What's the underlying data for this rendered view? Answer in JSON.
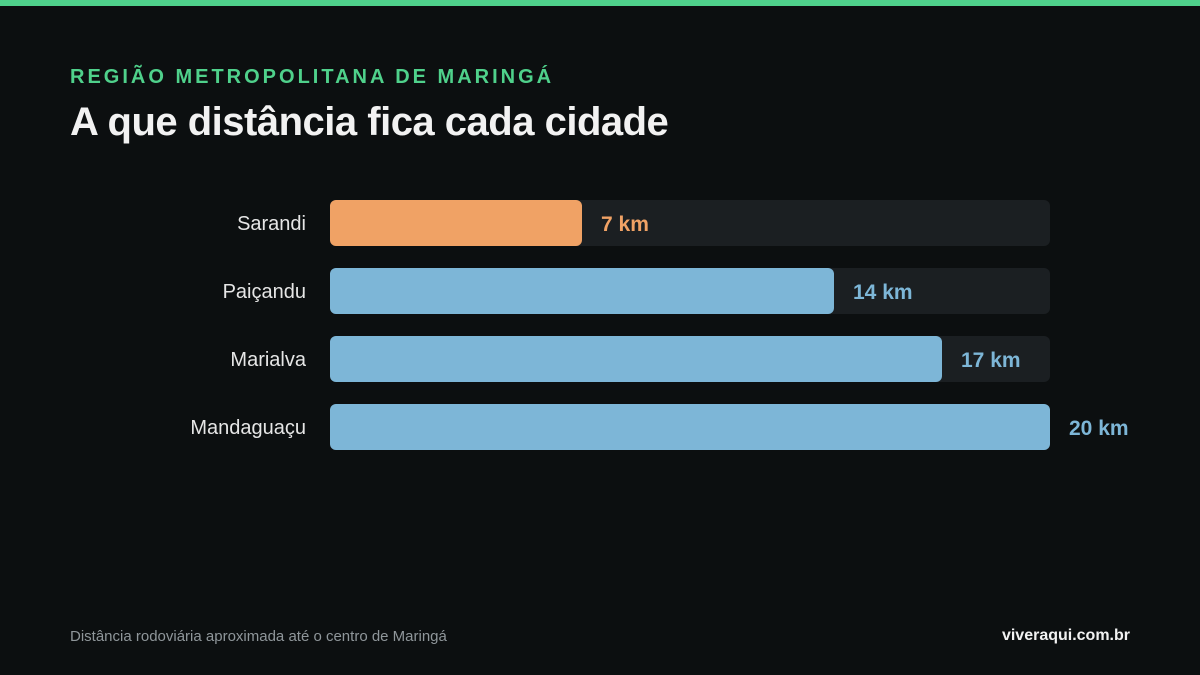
{
  "header": {
    "eyebrow": "REGIÃO METROPOLITANA DE MARINGÁ",
    "title": "A que distância fica cada cidade"
  },
  "footer": {
    "note": "Distância rodoviária aproximada até o centro de Maringá",
    "site": "viveraqui.com.br"
  },
  "colors": {
    "accent": "#4fd18b",
    "highlight": "#f0a265",
    "bar": "#7db6d7",
    "track": "#1b1f22",
    "label": "#e6e6e6"
  },
  "chart_data": {
    "type": "bar",
    "orientation": "horizontal",
    "unit": "km",
    "categories": [
      "Sarandi",
      "Paiçandu",
      "Marialva",
      "Mandaguaçu"
    ],
    "values": [
      7,
      14,
      17,
      20
    ],
    "value_labels": [
      "7 km",
      "14 km",
      "17 km",
      "20 km"
    ],
    "highlighted_index": 0,
    "xlim": [
      0,
      20
    ],
    "grid": false,
    "legend": "none"
  }
}
